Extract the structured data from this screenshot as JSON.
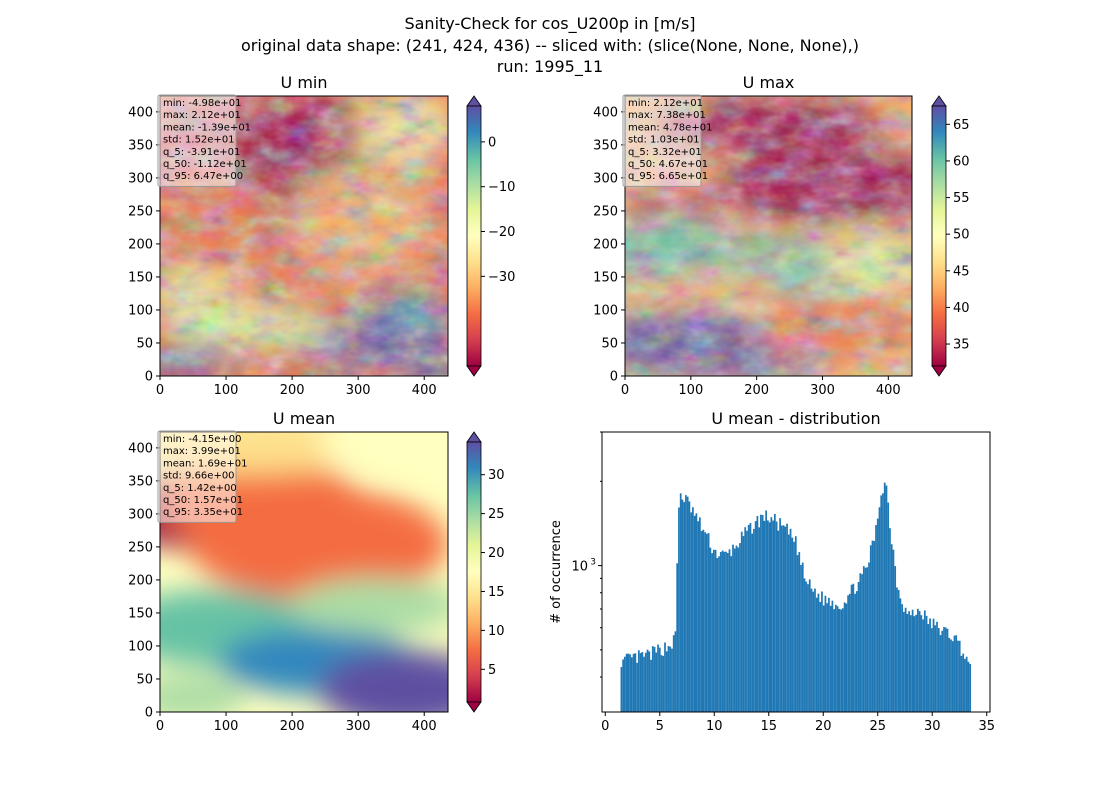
{
  "figure": {
    "suptitle_lines": [
      "Sanity-Check for cos_U200p in [m/s]",
      "original data shape: (241, 424, 436) -- sliced with: (slice(None, None, None),)",
      "run: 1995_11"
    ]
  },
  "colormap": {
    "name": "Spectral",
    "stops": [
      "#9e0142",
      "#d53e4f",
      "#f46d43",
      "#fdae61",
      "#fee08b",
      "#ffffbf",
      "#e6f598",
      "#abdda4",
      "#66c2a5",
      "#3288bd",
      "#5e4fa2"
    ]
  },
  "hist_color": "#1f77b4",
  "chart_data": [
    {
      "type": "heatmap",
      "panel": "umin",
      "title": "U min",
      "xlim": [
        0,
        436
      ],
      "ylim": [
        0,
        424
      ],
      "xticks": [
        0,
        100,
        200,
        300,
        400
      ],
      "yticks": [
        0,
        50,
        100,
        150,
        200,
        250,
        300,
        350,
        400
      ],
      "colorbar": {
        "range": [
          -50,
          8
        ],
        "ticks": [
          0,
          -10,
          -20,
          -30
        ],
        "extend": "both"
      },
      "stats": [
        "min: -4.98e+01",
        "max: 2.12e+01",
        "mean: -1.39e+01",
        "std: 1.52e+01",
        "q_5: -3.91e+01",
        "q_50: -1.12e+01",
        "q_95: 6.47e+00"
      ]
    },
    {
      "type": "heatmap",
      "panel": "umax",
      "title": "U max",
      "xlim": [
        0,
        436
      ],
      "ylim": [
        0,
        424
      ],
      "xticks": [
        0,
        100,
        200,
        300,
        400
      ],
      "yticks": [
        0,
        50,
        100,
        150,
        200,
        250,
        300,
        350,
        400
      ],
      "colorbar": {
        "range": [
          32,
          67.5
        ],
        "ticks": [
          65,
          60,
          55,
          50,
          45,
          40,
          35
        ],
        "extend": "both"
      },
      "stats": [
        "min: 2.12e+01",
        "max: 7.38e+01",
        "mean: 4.78e+01",
        "std: 1.03e+01",
        "q_5: 3.32e+01",
        "q_50: 4.67e+01",
        "q_95: 6.65e+01"
      ]
    },
    {
      "type": "heatmap",
      "panel": "umean",
      "title": "U mean",
      "xlim": [
        0,
        436
      ],
      "ylim": [
        0,
        424
      ],
      "xticks": [
        0,
        100,
        200,
        300,
        400
      ],
      "yticks": [
        0,
        50,
        100,
        150,
        200,
        250,
        300,
        350,
        400
      ],
      "colorbar": {
        "range": [
          0.8,
          34.2
        ],
        "ticks": [
          30,
          25,
          20,
          15,
          10,
          5
        ],
        "extend": "both"
      },
      "stats": [
        "min: -4.15e+00",
        "max: 3.99e+01",
        "mean: 1.69e+01",
        "std: 9.66e+00",
        "q_5: 1.42e+00",
        "q_50: 1.57e+01",
        "q_95: 3.35e+01"
      ]
    },
    {
      "type": "bar",
      "panel": "hist",
      "title": "U mean - distribution",
      "ylabel": "# of occurrence",
      "xlim": [
        -0.3,
        35.3
      ],
      "xticks": [
        0,
        5,
        10,
        15,
        20,
        25,
        30,
        35
      ],
      "yscale": "log",
      "ylim": [
        300,
        3000
      ],
      "ytick_labels": [
        {
          "value": 1000,
          "label": "10",
          "sup": "3"
        }
      ],
      "bin_width": 0.16,
      "profile": [
        [
          1.4,
          470
        ],
        [
          1.6,
          450
        ],
        [
          2.0,
          460
        ],
        [
          3.0,
          470
        ],
        [
          4.0,
          480
        ],
        [
          5.0,
          500
        ],
        [
          6.0,
          520
        ],
        [
          6.5,
          560
        ],
        [
          6.7,
          1500
        ],
        [
          6.9,
          1800
        ],
        [
          7.5,
          1700
        ],
        [
          8.5,
          1450
        ],
        [
          9.2,
          1300
        ],
        [
          10.0,
          1120
        ],
        [
          11.0,
          1080
        ],
        [
          11.8,
          1150
        ],
        [
          12.5,
          1250
        ],
        [
          13.5,
          1380
        ],
        [
          14.5,
          1500
        ],
        [
          15.2,
          1480
        ],
        [
          16.0,
          1400
        ],
        [
          16.8,
          1320
        ],
        [
          17.5,
          1200
        ],
        [
          18.3,
          900
        ],
        [
          19.0,
          820
        ],
        [
          20.0,
          760
        ],
        [
          21.0,
          740
        ],
        [
          21.6,
          720
        ],
        [
          22.5,
          800
        ],
        [
          23.3,
          880
        ],
        [
          24.0,
          980
        ],
        [
          24.8,
          1300
        ],
        [
          25.3,
          1800
        ],
        [
          25.6,
          2000
        ],
        [
          25.8,
          1900
        ],
        [
          26.2,
          1300
        ],
        [
          26.8,
          850
        ],
        [
          27.5,
          700
        ],
        [
          28.0,
          660
        ],
        [
          28.5,
          680
        ],
        [
          29.0,
          690
        ],
        [
          29.5,
          640
        ],
        [
          30.5,
          600
        ],
        [
          31.5,
          570
        ],
        [
          32.0,
          560
        ],
        [
          32.5,
          520
        ],
        [
          33.0,
          480
        ],
        [
          33.5,
          420
        ]
      ]
    }
  ]
}
